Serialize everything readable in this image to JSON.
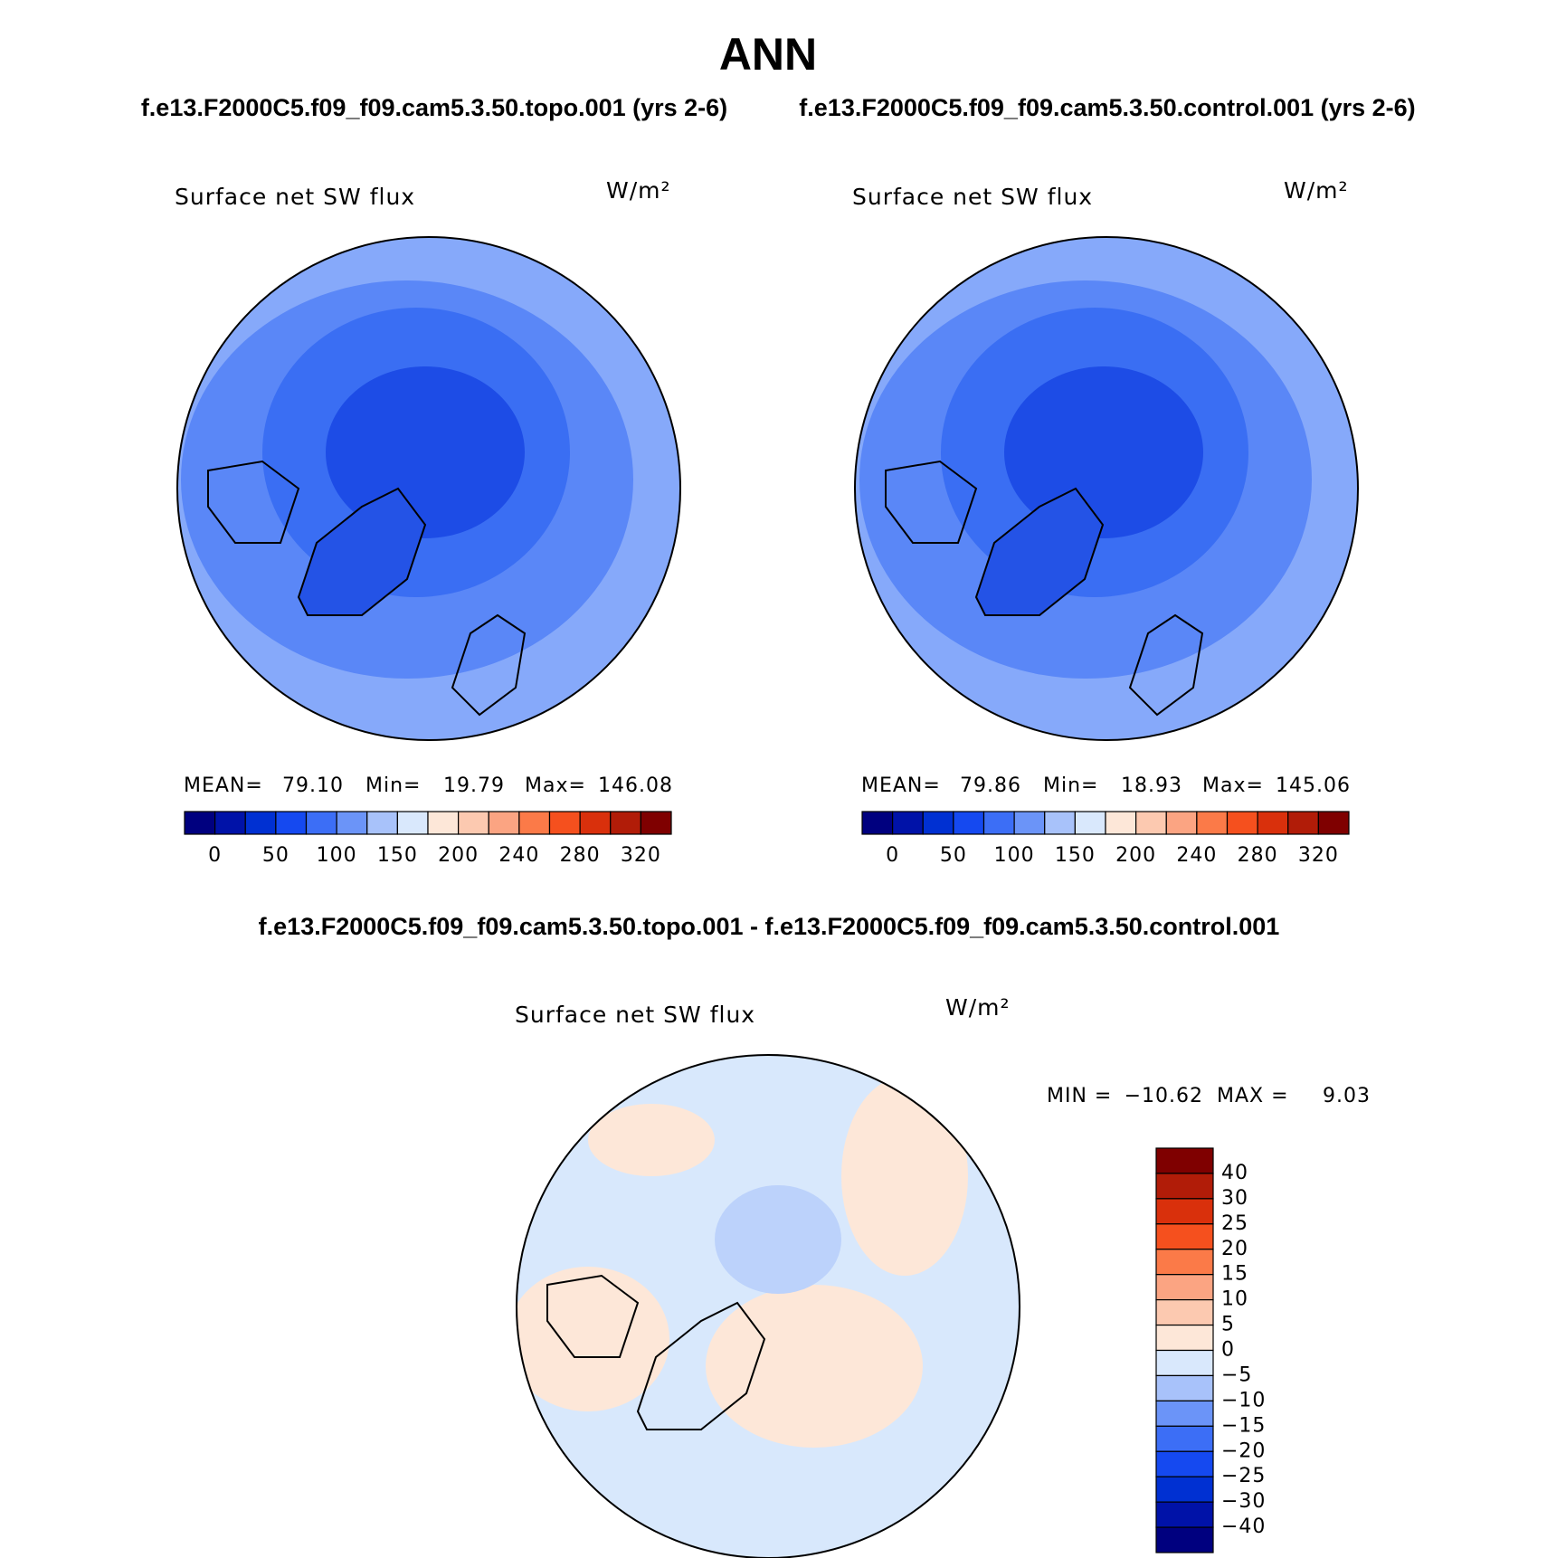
{
  "header": {
    "title": "ANN",
    "left_case": "f.e13.F2000C5.f09_f09.cam5.3.50.topo.001 (yrs 2-6)",
    "right_case": "f.e13.F2000C5.f09_f09.cam5.3.50.control.001 (yrs 2-6)"
  },
  "panels": [
    {
      "variable": "Surface net SW flux",
      "units": "W/m²",
      "stats": {
        "mean_label": "MEAN=",
        "mean": "79.10",
        "min_label": "Min=",
        "min": "19.79",
        "max_label": "Max=",
        "max": "146.08"
      },
      "colorbar": {
        "colors": [
          "#00007f",
          "#0012a8",
          "#0030d2",
          "#1549f0",
          "#3c6ef6",
          "#6b94f8",
          "#a8c2fa",
          "#d9e8fc",
          "#fde7d8",
          "#fcc9b0",
          "#fba482",
          "#fb7a48",
          "#f5501e",
          "#d9300c",
          "#b11c08",
          "#7f0000"
        ],
        "labels": [
          "0",
          "50",
          "100",
          "150",
          "200",
          "240",
          "280",
          "320"
        ]
      }
    },
    {
      "variable": "Surface net SW flux",
      "units": "W/m²",
      "stats": {
        "mean_label": "MEAN=",
        "mean": "79.86",
        "min_label": "Min=",
        "min": "18.93",
        "max_label": "Max=",
        "max": "145.06"
      },
      "colorbar": {
        "colors": [
          "#00007f",
          "#0012a8",
          "#0030d2",
          "#1549f0",
          "#3c6ef6",
          "#6b94f8",
          "#a8c2fa",
          "#d9e8fc",
          "#fde7d8",
          "#fcc9b0",
          "#fba482",
          "#fb7a48",
          "#f5501e",
          "#d9300c",
          "#b11c08",
          "#7f0000"
        ],
        "labels": [
          "0",
          "50",
          "100",
          "150",
          "200",
          "240",
          "280",
          "320"
        ]
      }
    }
  ],
  "difference": {
    "title": "f.e13.F2000C5.f09_f09.cam5.3.50.topo.001 - f.e13.F2000C5.f09_f09.cam5.3.50.control.001",
    "variable": "Surface net SW flux",
    "units": "W/m²",
    "stats": {
      "min_label": "MIN =",
      "min": "−10.62",
      "max_label": "MAX =",
      "max": "9.03"
    },
    "colorbar": {
      "colors": [
        "#7f0000",
        "#b11c08",
        "#d9300c",
        "#f5501e",
        "#fb7a48",
        "#fba482",
        "#fcc9b0",
        "#fde7d8",
        "#d9e8fc",
        "#a8c2fa",
        "#6b94f8",
        "#3c6ef6",
        "#1549f0",
        "#0030d2",
        "#0012a8",
        "#00007f"
      ],
      "labels": [
        "40",
        "30",
        "25",
        "20",
        "15",
        "10",
        "5",
        "0",
        "−5",
        "−10",
        "−15",
        "−20",
        "−25",
        "−30",
        "−40"
      ]
    }
  }
}
